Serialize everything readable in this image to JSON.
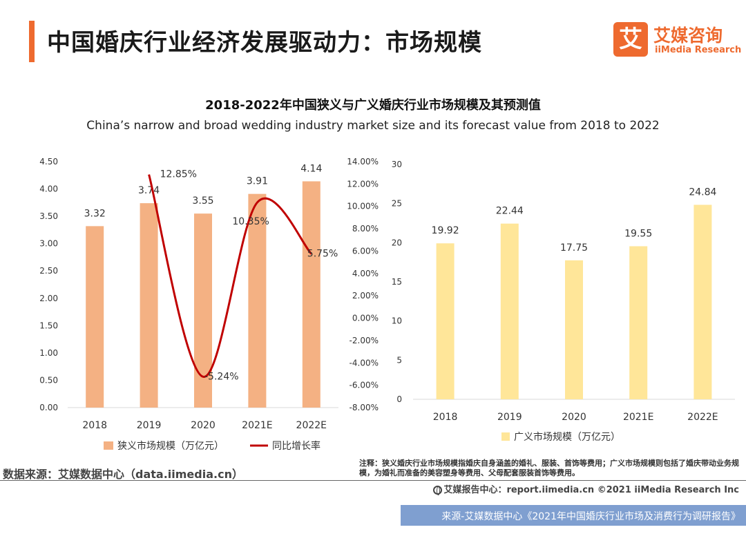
{
  "page": {
    "title": "中国婚庆行业经济发展驱动力：市场规模"
  },
  "logo": {
    "mark": "艾",
    "cn": "艾媒咨询",
    "en": "iiMedia Research"
  },
  "colors": {
    "accent": "#ee6a2f",
    "narrow_bar": "#f4b183",
    "growth_line": "#c00000",
    "broad_bar": "#ffe699",
    "footer_bar": "#7f9fd0"
  },
  "chart_data": [
    {
      "type": "bar",
      "title": "2018-2022年中国狭义与广义婚庆行业市场规模及其预测值",
      "subtitle": "China’s narrow and broad wedding industry market size and its forecast value from 2018 to 2022",
      "categories": [
        "2018",
        "2019",
        "2020",
        "2021E",
        "2022E"
      ],
      "series": [
        {
          "name": "狭义市场规模（万亿元）",
          "type": "bar",
          "axis": "left",
          "values": [
            3.32,
            3.74,
            3.55,
            3.91,
            4.14
          ]
        },
        {
          "name": "同比增长率",
          "type": "line",
          "axis": "right",
          "values": [
            null,
            12.85,
            -5.24,
            10.35,
            5.75
          ]
        }
      ],
      "value_labels": [
        "3.32",
        "3.74",
        "3.55",
        "3.91",
        "4.14"
      ],
      "growth_labels": [
        null,
        "12.85%",
        "-5.24%",
        "10.35%",
        "5.75%"
      ],
      "ylim": [
        0,
        4.5
      ],
      "yticks": [
        "0.00",
        "0.50",
        "1.00",
        "1.50",
        "2.00",
        "2.50",
        "3.00",
        "3.50",
        "4.00",
        "4.50"
      ],
      "y2lim": [
        -8,
        14
      ],
      "y2ticks": [
        "-8.00%",
        "-6.00%",
        "-4.00%",
        "-2.00%",
        "0.00%",
        "2.00%",
        "4.00%",
        "6.00%",
        "8.00%",
        "10.00%",
        "12.00%",
        "14.00%"
      ],
      "legend_position": "bottom"
    },
    {
      "type": "bar",
      "categories": [
        "2018",
        "2019",
        "2020",
        "2021E",
        "2022E"
      ],
      "series": [
        {
          "name": "广义市场规模（万亿元）",
          "values": [
            19.92,
            22.44,
            17.75,
            19.55,
            24.84
          ]
        }
      ],
      "value_labels": [
        "19.92",
        "22.44",
        "17.75",
        "19.55",
        "24.84"
      ],
      "ylim": [
        0,
        30
      ],
      "yticks": [
        "0",
        "5",
        "10",
        "15",
        "20",
        "25",
        "30"
      ],
      "legend_position": "bottom"
    }
  ],
  "source": "数据来源：艾媒数据中心（data.iimedia.cn）",
  "note": "注释：狭义婚庆行业市场规模指婚庆自身涵盖的婚礼、服装、首饰等费用；广义市场规模则包括了婚庆带动业务规模，为婚礼而准备的美容塑身等费用、父母配套服装首饰等费用。",
  "footer": "艾媒报告中心：report.iimedia.cn  ©2021  iiMedia Research  Inc",
  "bottom_banner": "来源-艾媒数据中心《2021年中国婚庆行业市场及消费行为调研报告》"
}
